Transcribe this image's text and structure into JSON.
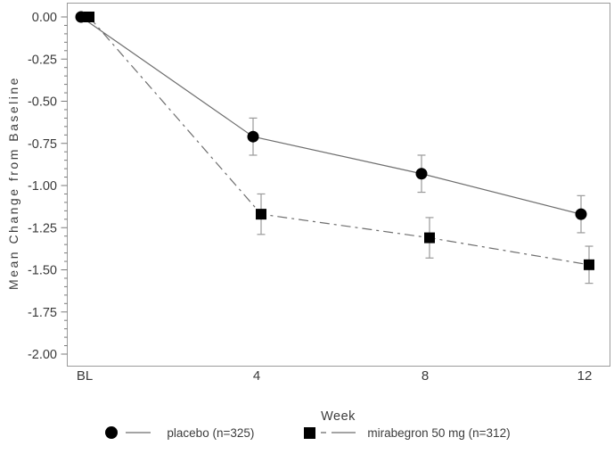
{
  "chart_data": {
    "type": "line",
    "title": "",
    "xlabel": "Week",
    "ylabel": "Mean Change from Baseline",
    "x_categories": [
      "BL",
      "4",
      "8",
      "12"
    ],
    "ylim": [
      -2.0,
      0.0
    ],
    "y_tick_step": 0.25,
    "y_minor_tick_step": 0.05,
    "grid": false,
    "legend_position": "bottom",
    "series": [
      {
        "id": "placebo",
        "name": "placebo (n=325)",
        "marker": "circle",
        "line_style": "solid",
        "values": [
          0.0,
          -0.71,
          -0.93,
          -1.17
        ],
        "error": [
          null,
          0.11,
          0.11,
          0.11
        ]
      },
      {
        "id": "mirabegron-50mg",
        "name": "mirabegron 50 mg (n=312)",
        "marker": "square",
        "line_style": "dash-dot",
        "values": [
          0.0,
          -1.17,
          -1.31,
          -1.47
        ],
        "error": [
          null,
          0.12,
          0.12,
          0.11
        ]
      }
    ],
    "colors": {
      "marker": "#000000",
      "line": "#6e6e6e",
      "error_bar": "#9a9a9a",
      "text": "#3a3a3a",
      "box_border": "#9b9b9b",
      "tick": "#7a7a7a"
    }
  }
}
